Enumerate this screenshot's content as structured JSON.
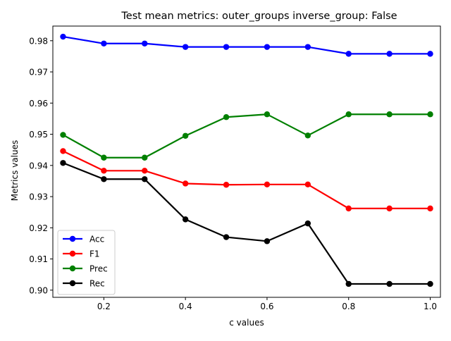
{
  "chart_data": {
    "type": "line",
    "title": "Test mean metrics: outer_groups inverse_group: False",
    "xlabel": "c values",
    "ylabel": "Metrics values",
    "xlim": [
      0.075,
      1.025
    ],
    "ylim": [
      0.8977,
      0.9847
    ],
    "xticks": [
      "0.2",
      "0.4",
      "0.6",
      "0.8",
      "1.0"
    ],
    "yticks": [
      "0.90",
      "0.91",
      "0.92",
      "0.93",
      "0.94",
      "0.95",
      "0.96",
      "0.97",
      "0.98"
    ],
    "grid": false,
    "legend_position": "bottom-left",
    "x": [
      0.1,
      0.2,
      0.3,
      0.4,
      0.5,
      0.6,
      0.7,
      0.8,
      0.9,
      1.0
    ],
    "series": [
      {
        "name": "Acc",
        "color": "#0000ff",
        "values": [
          0.9813,
          0.9791,
          0.9791,
          0.978,
          0.978,
          0.978,
          0.978,
          0.9758,
          0.9758,
          0.9758
        ]
      },
      {
        "name": "F1",
        "color": "#ff0000",
        "values": [
          0.9446,
          0.9383,
          0.9383,
          0.9342,
          0.9338,
          0.9339,
          0.9339,
          0.9262,
          0.9262,
          0.9262
        ]
      },
      {
        "name": "Prec",
        "color": "#008000",
        "values": [
          0.9498,
          0.9425,
          0.9425,
          0.9495,
          0.9555,
          0.9564,
          0.9496,
          0.9564,
          0.9564,
          0.9564
        ]
      },
      {
        "name": "Rec",
        "color": "#000000",
        "values": [
          0.9408,
          0.9356,
          0.9356,
          0.9227,
          0.917,
          0.9157,
          0.9214,
          0.902,
          0.902,
          0.902
        ]
      }
    ]
  }
}
